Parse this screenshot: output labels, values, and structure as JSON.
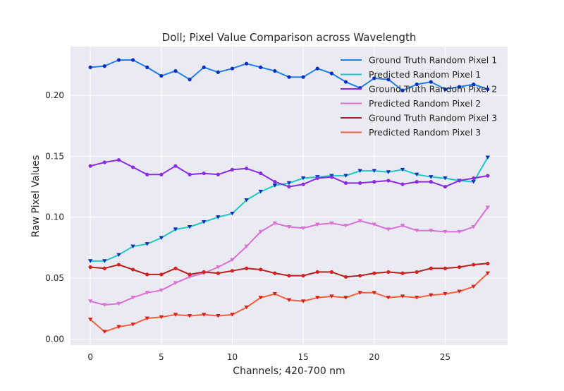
{
  "chart_data": {
    "type": "line",
    "title": "Doll; Pixel Value Comparison across Wavelength",
    "xlabel": "Channels; 420-700 nm",
    "ylabel": "Raw Pixel Values",
    "xlim": [
      -1.4,
      29.4
    ],
    "ylim": [
      -0.005,
      0.24
    ],
    "xticks": [
      0,
      5,
      10,
      15,
      20,
      25
    ],
    "yticks": [
      0.0,
      0.05,
      0.1,
      0.15,
      0.2
    ],
    "ytick_labels": [
      "0.00",
      "0.05",
      "0.10",
      "0.15",
      "0.20"
    ],
    "grid": true,
    "legend_position": "top-right",
    "x": [
      0,
      1,
      2,
      3,
      4,
      5,
      6,
      7,
      8,
      9,
      10,
      11,
      12,
      13,
      14,
      15,
      16,
      17,
      18,
      19,
      20,
      21,
      22,
      23,
      24,
      25,
      26,
      27,
      28
    ],
    "series": [
      {
        "name": "Ground Truth Random Pixel 1",
        "color": "#1e7fe8",
        "marker_color": "#0a2fbf",
        "marker": "circle",
        "values": [
          0.223,
          0.224,
          0.229,
          0.229,
          0.223,
          0.216,
          0.22,
          0.213,
          0.223,
          0.219,
          0.222,
          0.226,
          0.223,
          0.22,
          0.215,
          0.215,
          0.222,
          0.218,
          0.211,
          0.206,
          0.214,
          0.213,
          0.204,
          0.209,
          0.211,
          0.205,
          0.207,
          0.209,
          0.205
        ]
      },
      {
        "name": "Predicted Random Pixel 1",
        "color": "#1bc9c6",
        "marker_color": "#0a2fbf",
        "marker": "triangle-down",
        "values": [
          0.064,
          0.064,
          0.069,
          0.076,
          0.078,
          0.083,
          0.09,
          0.092,
          0.096,
          0.1,
          0.103,
          0.114,
          0.121,
          0.126,
          0.128,
          0.132,
          0.133,
          0.134,
          0.134,
          0.138,
          0.138,
          0.137,
          0.139,
          0.135,
          0.133,
          0.132,
          0.13,
          0.129,
          0.149
        ]
      },
      {
        "name": "Ground Truth Random Pixel 2",
        "color": "#8a2be2",
        "marker_color": "#8a2be2",
        "marker": "circle",
        "values": [
          0.142,
          0.145,
          0.147,
          0.141,
          0.135,
          0.135,
          0.142,
          0.135,
          0.136,
          0.135,
          0.139,
          0.14,
          0.136,
          0.129,
          0.125,
          0.127,
          0.132,
          0.133,
          0.128,
          0.128,
          0.129,
          0.13,
          0.127,
          0.129,
          0.129,
          0.125,
          0.13,
          0.132,
          0.134
        ]
      },
      {
        "name": "Predicted Random Pixel 2",
        "color": "#da70d6",
        "marker_color": "#da70d6",
        "marker": "triangle-down",
        "values": [
          0.031,
          0.028,
          0.029,
          0.034,
          0.038,
          0.04,
          0.046,
          0.051,
          0.054,
          0.059,
          0.065,
          0.076,
          0.088,
          0.095,
          0.092,
          0.091,
          0.094,
          0.095,
          0.093,
          0.097,
          0.094,
          0.09,
          0.093,
          0.089,
          0.089,
          0.088,
          0.088,
          0.092,
          0.108
        ]
      },
      {
        "name": "Ground Truth Random Pixel 3",
        "color": "#b22222",
        "marker_color": "#d62020",
        "marker": "circle",
        "values": [
          0.059,
          0.058,
          0.061,
          0.057,
          0.053,
          0.053,
          0.058,
          0.053,
          0.055,
          0.054,
          0.056,
          0.058,
          0.057,
          0.054,
          0.052,
          0.052,
          0.055,
          0.055,
          0.051,
          0.052,
          0.054,
          0.055,
          0.054,
          0.055,
          0.058,
          0.058,
          0.059,
          0.061,
          0.062
        ]
      },
      {
        "name": "Predicted Random Pixel 3",
        "color": "#f4603c",
        "marker_color": "#d62020",
        "marker": "triangle-down",
        "values": [
          0.016,
          0.006,
          0.01,
          0.012,
          0.017,
          0.018,
          0.02,
          0.019,
          0.02,
          0.019,
          0.02,
          0.026,
          0.034,
          0.037,
          0.032,
          0.031,
          0.034,
          0.035,
          0.034,
          0.038,
          0.038,
          0.034,
          0.035,
          0.034,
          0.036,
          0.037,
          0.039,
          0.043,
          0.054
        ]
      }
    ]
  }
}
